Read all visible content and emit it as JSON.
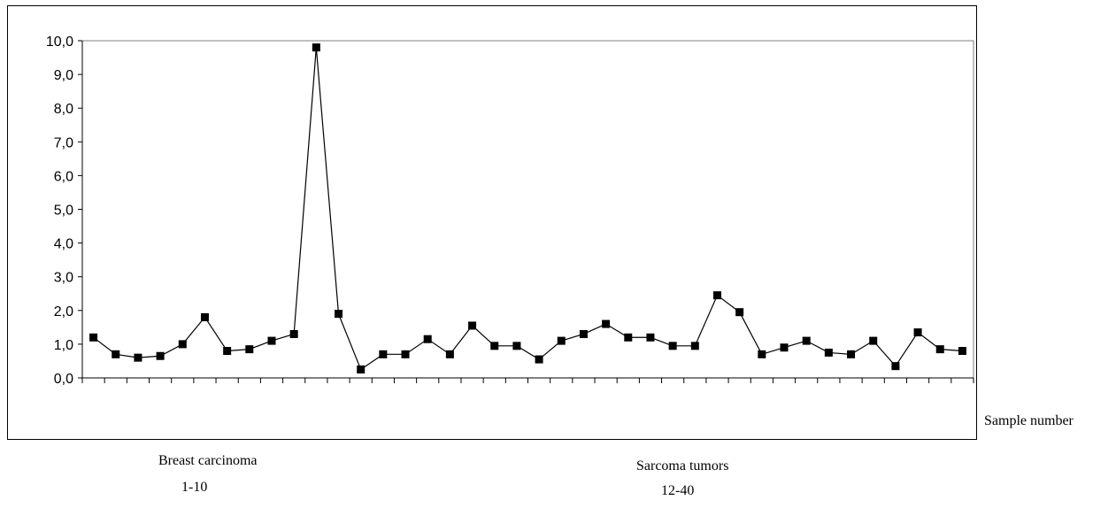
{
  "chart_data": {
    "type": "line",
    "title": "",
    "xlabel": "Sample number",
    "ylabel": "",
    "ylim": [
      0,
      10
    ],
    "y_ticks": [
      "0,0",
      "1,0",
      "2,0",
      "3,0",
      "4,0",
      "5,0",
      "6,0",
      "7,0",
      "8,0",
      "9,0",
      "10,0"
    ],
    "x": [
      1,
      2,
      3,
      4,
      5,
      6,
      7,
      8,
      9,
      10,
      11,
      12,
      13,
      14,
      15,
      16,
      17,
      18,
      19,
      20,
      21,
      22,
      23,
      24,
      25,
      26,
      27,
      28,
      29,
      30,
      31,
      32,
      33,
      34,
      35,
      36,
      37,
      38,
      39,
      40
    ],
    "series": [
      {
        "values": [
          1.2,
          0.7,
          0.6,
          0.65,
          1.0,
          1.8,
          0.8,
          0.85,
          1.1,
          1.3,
          9.8,
          1.9,
          0.25,
          0.7,
          0.7,
          1.15,
          0.7,
          1.55,
          0.95,
          0.95,
          0.55,
          1.1,
          1.3,
          1.6,
          1.2,
          1.2,
          0.95,
          0.95,
          2.45,
          1.95,
          0.7,
          0.9,
          1.1,
          0.75,
          0.7,
          1.1,
          0.35,
          1.35,
          0.85,
          0.8
        ],
        "color": "#000000",
        "marker": "square"
      }
    ],
    "grid": false,
    "legend": "none",
    "groups": [
      {
        "name": "Breast carcinoma",
        "range": "1-10"
      },
      {
        "name": "Sarcoma tumors",
        "range": "12-40"
      }
    ]
  }
}
